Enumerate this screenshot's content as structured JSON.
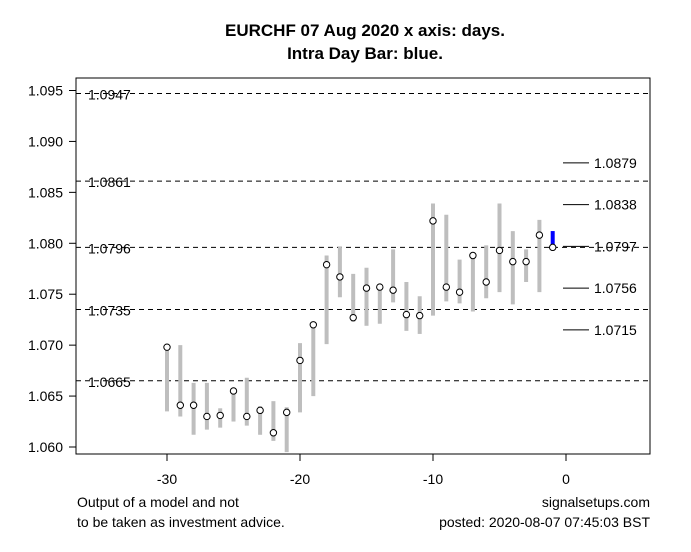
{
  "chart_data": {
    "type": "ohlc-range",
    "title": "EURCHF 07 Aug 2020 x axis: days.",
    "subtitle": "Intra Day Bar: blue.",
    "xlabel": "",
    "ylabel": "",
    "xlim": [
      -36,
      6.5
    ],
    "ylim": [
      1.0593,
      1.0962
    ],
    "x_ticks": [
      -30,
      -20,
      -10,
      0
    ],
    "x_tick_labels": [
      "-30",
      "-20",
      "-10",
      "0"
    ],
    "y_ticks": [
      1.06,
      1.065,
      1.07,
      1.075,
      1.08,
      1.085,
      1.09,
      1.095
    ],
    "y_tick_labels": [
      "1.060",
      "1.065",
      "1.070",
      "1.075",
      "1.080",
      "1.085",
      "1.090",
      "1.095"
    ],
    "grid": false,
    "colors": {
      "history_bar": "#BEBEBE",
      "intraday_bar": "#0000FF",
      "close_marker": "#000000",
      "levels": "#000000"
    },
    "bars": [
      {
        "day": -30,
        "high": 1.07,
        "low": 1.0635,
        "close": 1.0698
      },
      {
        "day": -29,
        "high": 1.07,
        "low": 1.063,
        "close": 1.0641
      },
      {
        "day": -28,
        "high": 1.0663,
        "low": 1.0612,
        "close": 1.0641
      },
      {
        "day": -27,
        "high": 1.0663,
        "low": 1.0617,
        "close": 1.063
      },
      {
        "day": -26,
        "high": 1.0638,
        "low": 1.0619,
        "close": 1.0631
      },
      {
        "day": -25,
        "high": 1.0657,
        "low": 1.0625,
        "close": 1.0655
      },
      {
        "day": -24,
        "high": 1.0668,
        "low": 1.0621,
        "close": 1.063
      },
      {
        "day": -23,
        "high": 1.064,
        "low": 1.0612,
        "close": 1.0636
      },
      {
        "day": -22,
        "high": 1.0645,
        "low": 1.0606,
        "close": 1.0614
      },
      {
        "day": -21,
        "high": 1.0639,
        "low": 1.0595,
        "close": 1.0634
      },
      {
        "day": -20,
        "high": 1.0702,
        "low": 1.0634,
        "close": 1.0685
      },
      {
        "day": -19,
        "high": 1.0721,
        "low": 1.065,
        "close": 1.072
      },
      {
        "day": -18,
        "high": 1.0788,
        "low": 1.0701,
        "close": 1.0779
      },
      {
        "day": -17,
        "high": 1.0797,
        "low": 1.0747,
        "close": 1.0767
      },
      {
        "day": -16,
        "high": 1.077,
        "low": 1.0723,
        "close": 1.0727
      },
      {
        "day": -15,
        "high": 1.0776,
        "low": 1.0719,
        "close": 1.0756
      },
      {
        "day": -14,
        "high": 1.076,
        "low": 1.0721,
        "close": 1.0757
      },
      {
        "day": -13,
        "high": 1.0794,
        "low": 1.0742,
        "close": 1.0754
      },
      {
        "day": -12,
        "high": 1.0762,
        "low": 1.0714,
        "close": 1.073
      },
      {
        "day": -11,
        "high": 1.0748,
        "low": 1.0711,
        "close": 1.0729
      },
      {
        "day": -10,
        "high": 1.0839,
        "low": 1.0729,
        "close": 1.0822
      },
      {
        "day": -9,
        "high": 1.0828,
        "low": 1.0743,
        "close": 1.0757
      },
      {
        "day": -8,
        "high": 1.0784,
        "low": 1.0741,
        "close": 1.0752
      },
      {
        "day": -7,
        "high": 1.079,
        "low": 1.0733,
        "close": 1.0788
      },
      {
        "day": -6,
        "high": 1.0798,
        "low": 1.0746,
        "close": 1.0762
      },
      {
        "day": -5,
        "high": 1.0839,
        "low": 1.0752,
        "close": 1.0793
      },
      {
        "day": -4,
        "high": 1.0812,
        "low": 1.074,
        "close": 1.0782
      },
      {
        "day": -3,
        "high": 1.0794,
        "low": 1.0762,
        "close": 1.0782
      },
      {
        "day": -2,
        "high": 1.0823,
        "low": 1.0752,
        "close": 1.0808
      }
    ],
    "intraday_bar": {
      "day": -1,
      "high": 1.0812,
      "low": 1.0793,
      "close": 1.0796
    },
    "horizontal_levels": [
      {
        "value": 1.0947,
        "label": "1.0947"
      },
      {
        "value": 1.0861,
        "label": "1.0861"
      },
      {
        "value": 1.0796,
        "label": "1.0796"
      },
      {
        "value": 1.0735,
        "label": "1.0735"
      },
      {
        "value": 1.0665,
        "label": "1.0665"
      }
    ],
    "projection_levels": [
      {
        "value": 1.0879,
        "label": "1.0879"
      },
      {
        "value": 1.0838,
        "label": "1.0838"
      },
      {
        "value": 1.0797,
        "label": "1.0797"
      },
      {
        "value": 1.0756,
        "label": "1.0756"
      },
      {
        "value": 1.0715,
        "label": "1.0715"
      }
    ]
  },
  "footer": {
    "disclaimer_line1": "Output of a model and not",
    "disclaimer_line2": "to be taken as investment advice.",
    "site": "signalsetups.com",
    "posted": "posted: 2020-08-07 07:45:03 BST"
  }
}
